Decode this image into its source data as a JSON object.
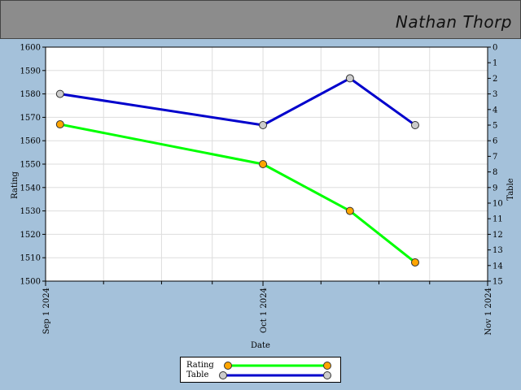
{
  "header": {
    "name": "Nathan Thorp"
  },
  "colors": {
    "background": "#a4c1da",
    "header": "#8c8c8c",
    "rating_line": "#00ff00",
    "rating_marker": "#ffa500",
    "table_line": "#0000cc",
    "table_marker": "#cccccc",
    "grid": "#dddddd"
  },
  "chart_data": {
    "type": "line",
    "xlabel": "Date",
    "ylabel": "Rating",
    "y2label": "Table",
    "xlim": [
      "2024-09-01",
      "2024-11-01"
    ],
    "ylim": [
      1500,
      1600
    ],
    "y2lim": [
      0,
      15
    ],
    "y2_inverted": true,
    "x_ticks": [
      "Sep 1 2024",
      "Oct 1 2024",
      "Nov 1 2024"
    ],
    "y_ticks": [
      1500,
      1510,
      1520,
      1530,
      1540,
      1550,
      1560,
      1570,
      1580,
      1590,
      1600
    ],
    "y2_ticks": [
      0,
      1,
      2,
      3,
      4,
      5,
      6,
      7,
      8,
      9,
      10,
      11,
      12,
      13,
      14,
      15
    ],
    "grid": true,
    "legend_position": "bottom-center",
    "series": [
      {
        "name": "Rating",
        "axis": "left",
        "x": [
          "2024-09-03",
          "2024-10-01",
          "2024-10-13",
          "2024-10-22"
        ],
        "values": [
          1567,
          1550,
          1530,
          1508
        ]
      },
      {
        "name": "Table",
        "axis": "right",
        "x": [
          "2024-09-03",
          "2024-10-01",
          "2024-10-13",
          "2024-10-22"
        ],
        "values": [
          3,
          5,
          2,
          5
        ]
      }
    ]
  }
}
